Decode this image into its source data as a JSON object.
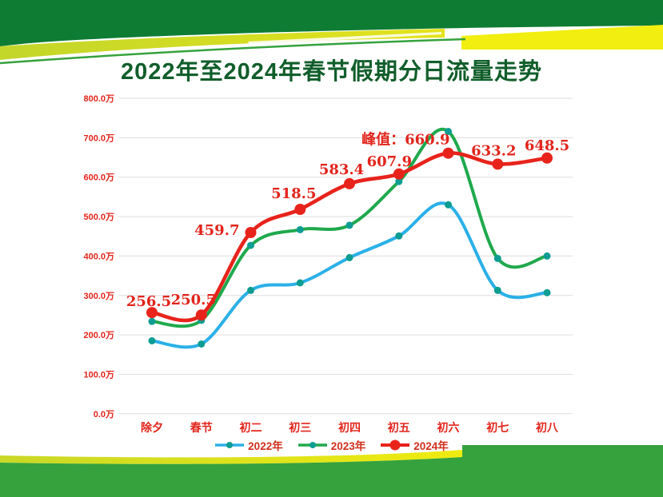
{
  "page": {
    "title": "2022年至2024年春节假期分日流量走势"
  },
  "colors": {
    "title_green": "#115e2b",
    "banner_dark_green": "#0e7c33",
    "banner_mid_green": "#35a23d",
    "swoosh_yellow_left": "#c3d62a",
    "swoosh_yellow_right": "#f1ee10",
    "axis_label_red": "#e2241b",
    "data_label_red": "#e2241b",
    "legend_text_red": "#d0301d",
    "gridline_gray": "#dedede",
    "line_2022_blue": "#2bb0e8",
    "line_2023_green": "#1fa94c",
    "line_2024_red": "#e8231c",
    "marker_teal": "#0d9d92"
  },
  "chart_data": {
    "type": "line",
    "title": "2022年至2024年春节假期分日流量走势",
    "categories": [
      "除夕",
      "春节",
      "初二",
      "初三",
      "初四",
      "初五",
      "初六",
      "初七",
      "初八"
    ],
    "y_tick_labels": [
      "800.0万",
      "700.0万",
      "600.0万",
      "500.0万",
      "400.0万",
      "300.0万",
      "200.0万",
      "100.0万",
      "0.0万"
    ],
    "ylim": [
      0,
      800
    ],
    "y_unit": "万",
    "grid": true,
    "legend_position": "bottom-center",
    "series": [
      {
        "name": "2022年",
        "line_color": "#2bb0e8",
        "dot_color": "#0d9d92",
        "values": [
          185,
          177,
          313,
          332,
          396,
          451,
          530,
          313,
          307
        ]
      },
      {
        "name": "2023年",
        "line_color": "#1fa94c",
        "dot_color": "#0d9d92",
        "values": [
          234,
          237,
          427,
          467,
          478,
          589,
          716,
          394,
          400
        ]
      },
      {
        "name": "2024年",
        "line_color": "#e8231c",
        "dot_color": "#e8231c",
        "values": [
          256.5,
          250.5,
          459.7,
          518.5,
          583.4,
          607.9,
          660.9,
          633.2,
          648.5
        ],
        "point_labels": [
          "256.5",
          "250.5",
          "459.7",
          "518.5",
          "583.4",
          "607.9",
          "峰值：660.9",
          "633.2",
          "648.5"
        ],
        "peak_annotation": "峰值：660.9",
        "peak_value": 660.9
      }
    ]
  }
}
